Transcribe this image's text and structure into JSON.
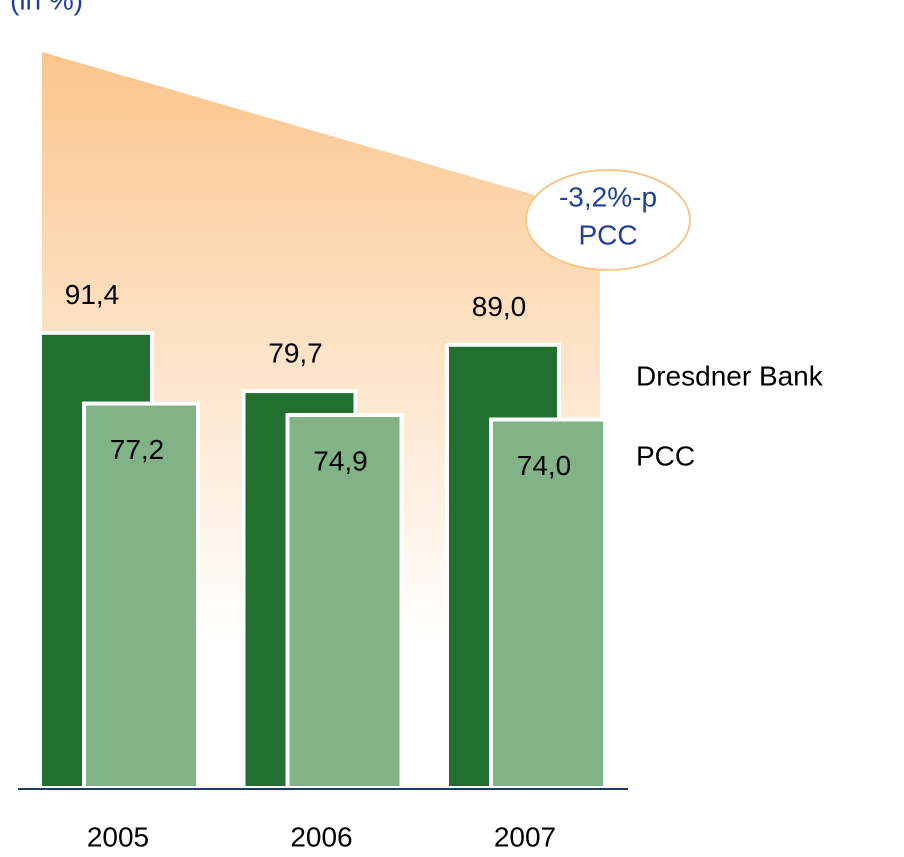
{
  "chart_data": {
    "type": "bar",
    "title": "(in %)",
    "categories": [
      "2005",
      "2006",
      "2007"
    ],
    "series": [
      {
        "name": "Dresdner Bank",
        "color": "#217030",
        "values": [
          91.4,
          79.7,
          89.0
        ],
        "value_labels": [
          "91,4",
          "79,7",
          "89,0"
        ]
      },
      {
        "name": "PCC",
        "color": "#82b386",
        "values": [
          77.2,
          74.9,
          74.0
        ],
        "value_labels": [
          "77,2",
          "74,9",
          "74,0"
        ]
      }
    ],
    "ylim": [
      0,
      100
    ],
    "annotation": [
      "-3,2%-p",
      "PCC"
    ]
  }
}
